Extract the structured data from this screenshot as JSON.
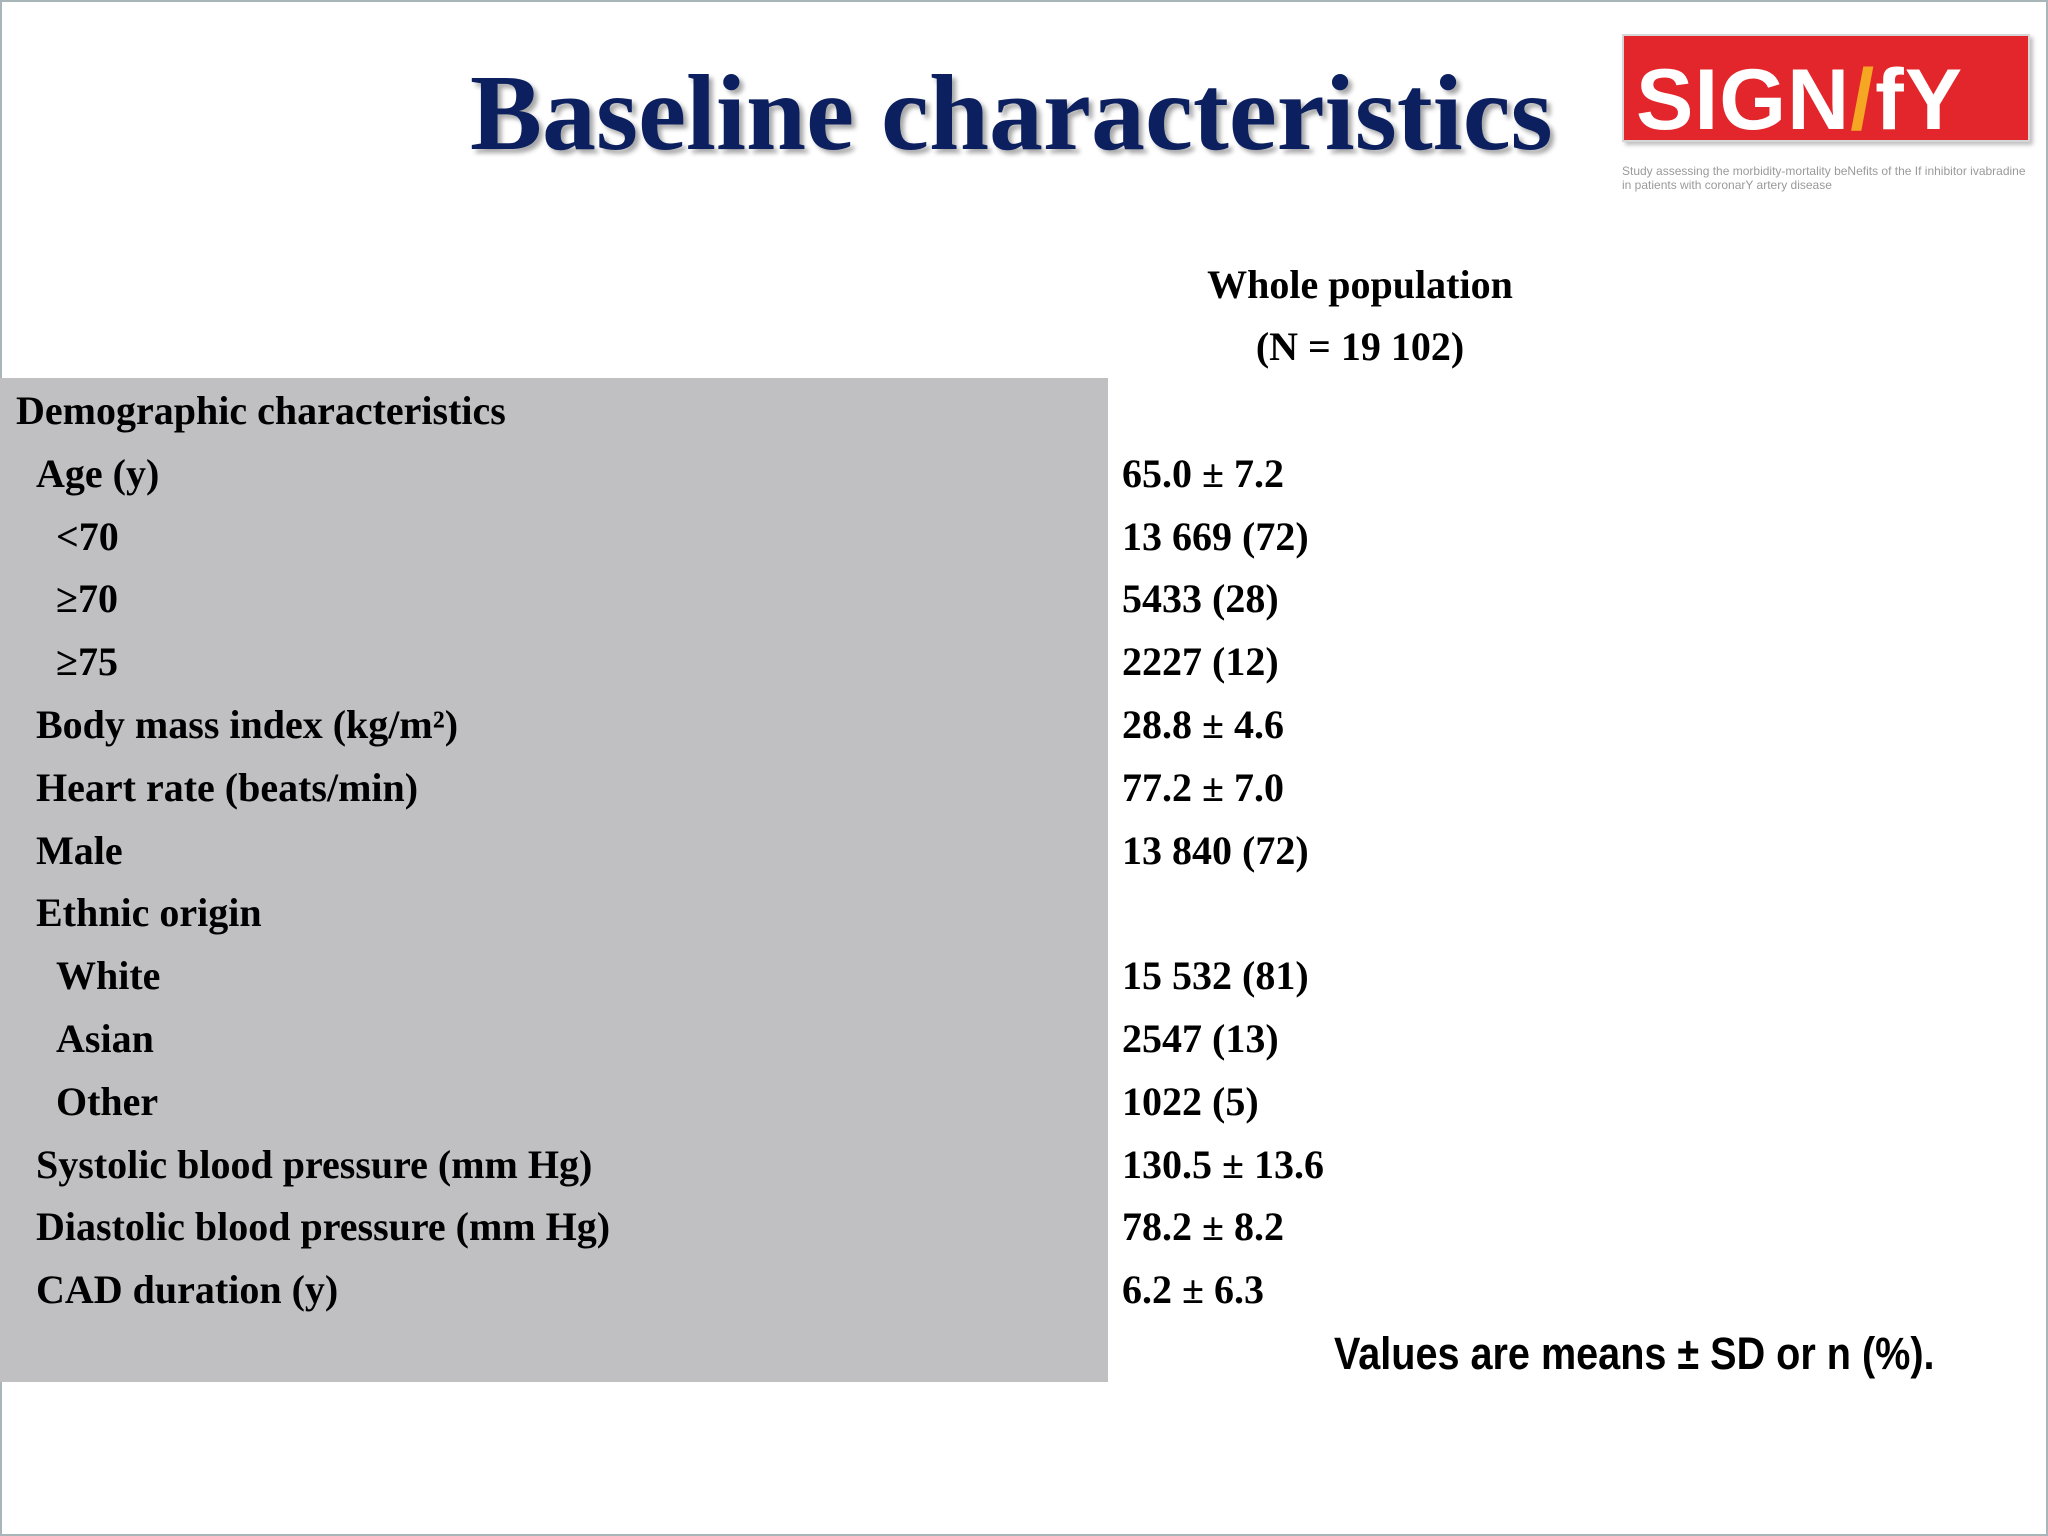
{
  "slide": {
    "title": "Baseline characteristics",
    "logo": {
      "wordmark": "SIGNIfY",
      "tagline": "Study assessing the morbidity-mortality beNefits of the If inhibitor ivabradine in patients with coronarY artery disease",
      "colors": {
        "box": "#e3262b",
        "accent": "#f5a623",
        "text": "#ffffff"
      }
    },
    "column_header": {
      "line1": "Whole population",
      "line2": "(N = 19 102)"
    },
    "rows": [
      {
        "label": "Demographic characteristics",
        "value": "",
        "indent": 0
      },
      {
        "label": "Age (y)",
        "value": "65.0 ± 7.2",
        "indent": 1
      },
      {
        "label": "<70",
        "value": "13 669 (72)",
        "indent": 2
      },
      {
        "label": "≥70",
        "value": "5433 (28)",
        "indent": 2
      },
      {
        "label": "≥75",
        "value": "2227 (12)",
        "indent": 2
      },
      {
        "label": "Body mass index (kg/m²)",
        "value": "28.8 ± 4.6",
        "indent": 1
      },
      {
        "label": "Heart rate (beats/min)",
        "value": "77.2 ± 7.0",
        "indent": 1
      },
      {
        "label": "Male",
        "value": "13 840 (72)",
        "indent": 1
      },
      {
        "label": "Ethnic origin",
        "value": "",
        "indent": 1
      },
      {
        "label": "White",
        "value": "15 532 (81)",
        "indent": 2
      },
      {
        "label": "Asian",
        "value": "2547 (13)",
        "indent": 2
      },
      {
        "label": "Other",
        "value": "1022 (5)",
        "indent": 2
      },
      {
        "label": "Systolic blood pressure (mm Hg)",
        "value": "130.5 ± 13.6",
        "indent": 1
      },
      {
        "label": "Diastolic blood pressure (mm Hg)",
        "value": "78.2 ± 8.2",
        "indent": 1
      },
      {
        "label": "CAD duration (y)",
        "value": "6.2 ± 6.3",
        "indent": 1
      }
    ],
    "footnote": "Values are means ± SD or n (%).",
    "colors": {
      "title": "#0c1f5f",
      "panel": "#c0bfc1",
      "frame": "#a9b6b9"
    }
  }
}
